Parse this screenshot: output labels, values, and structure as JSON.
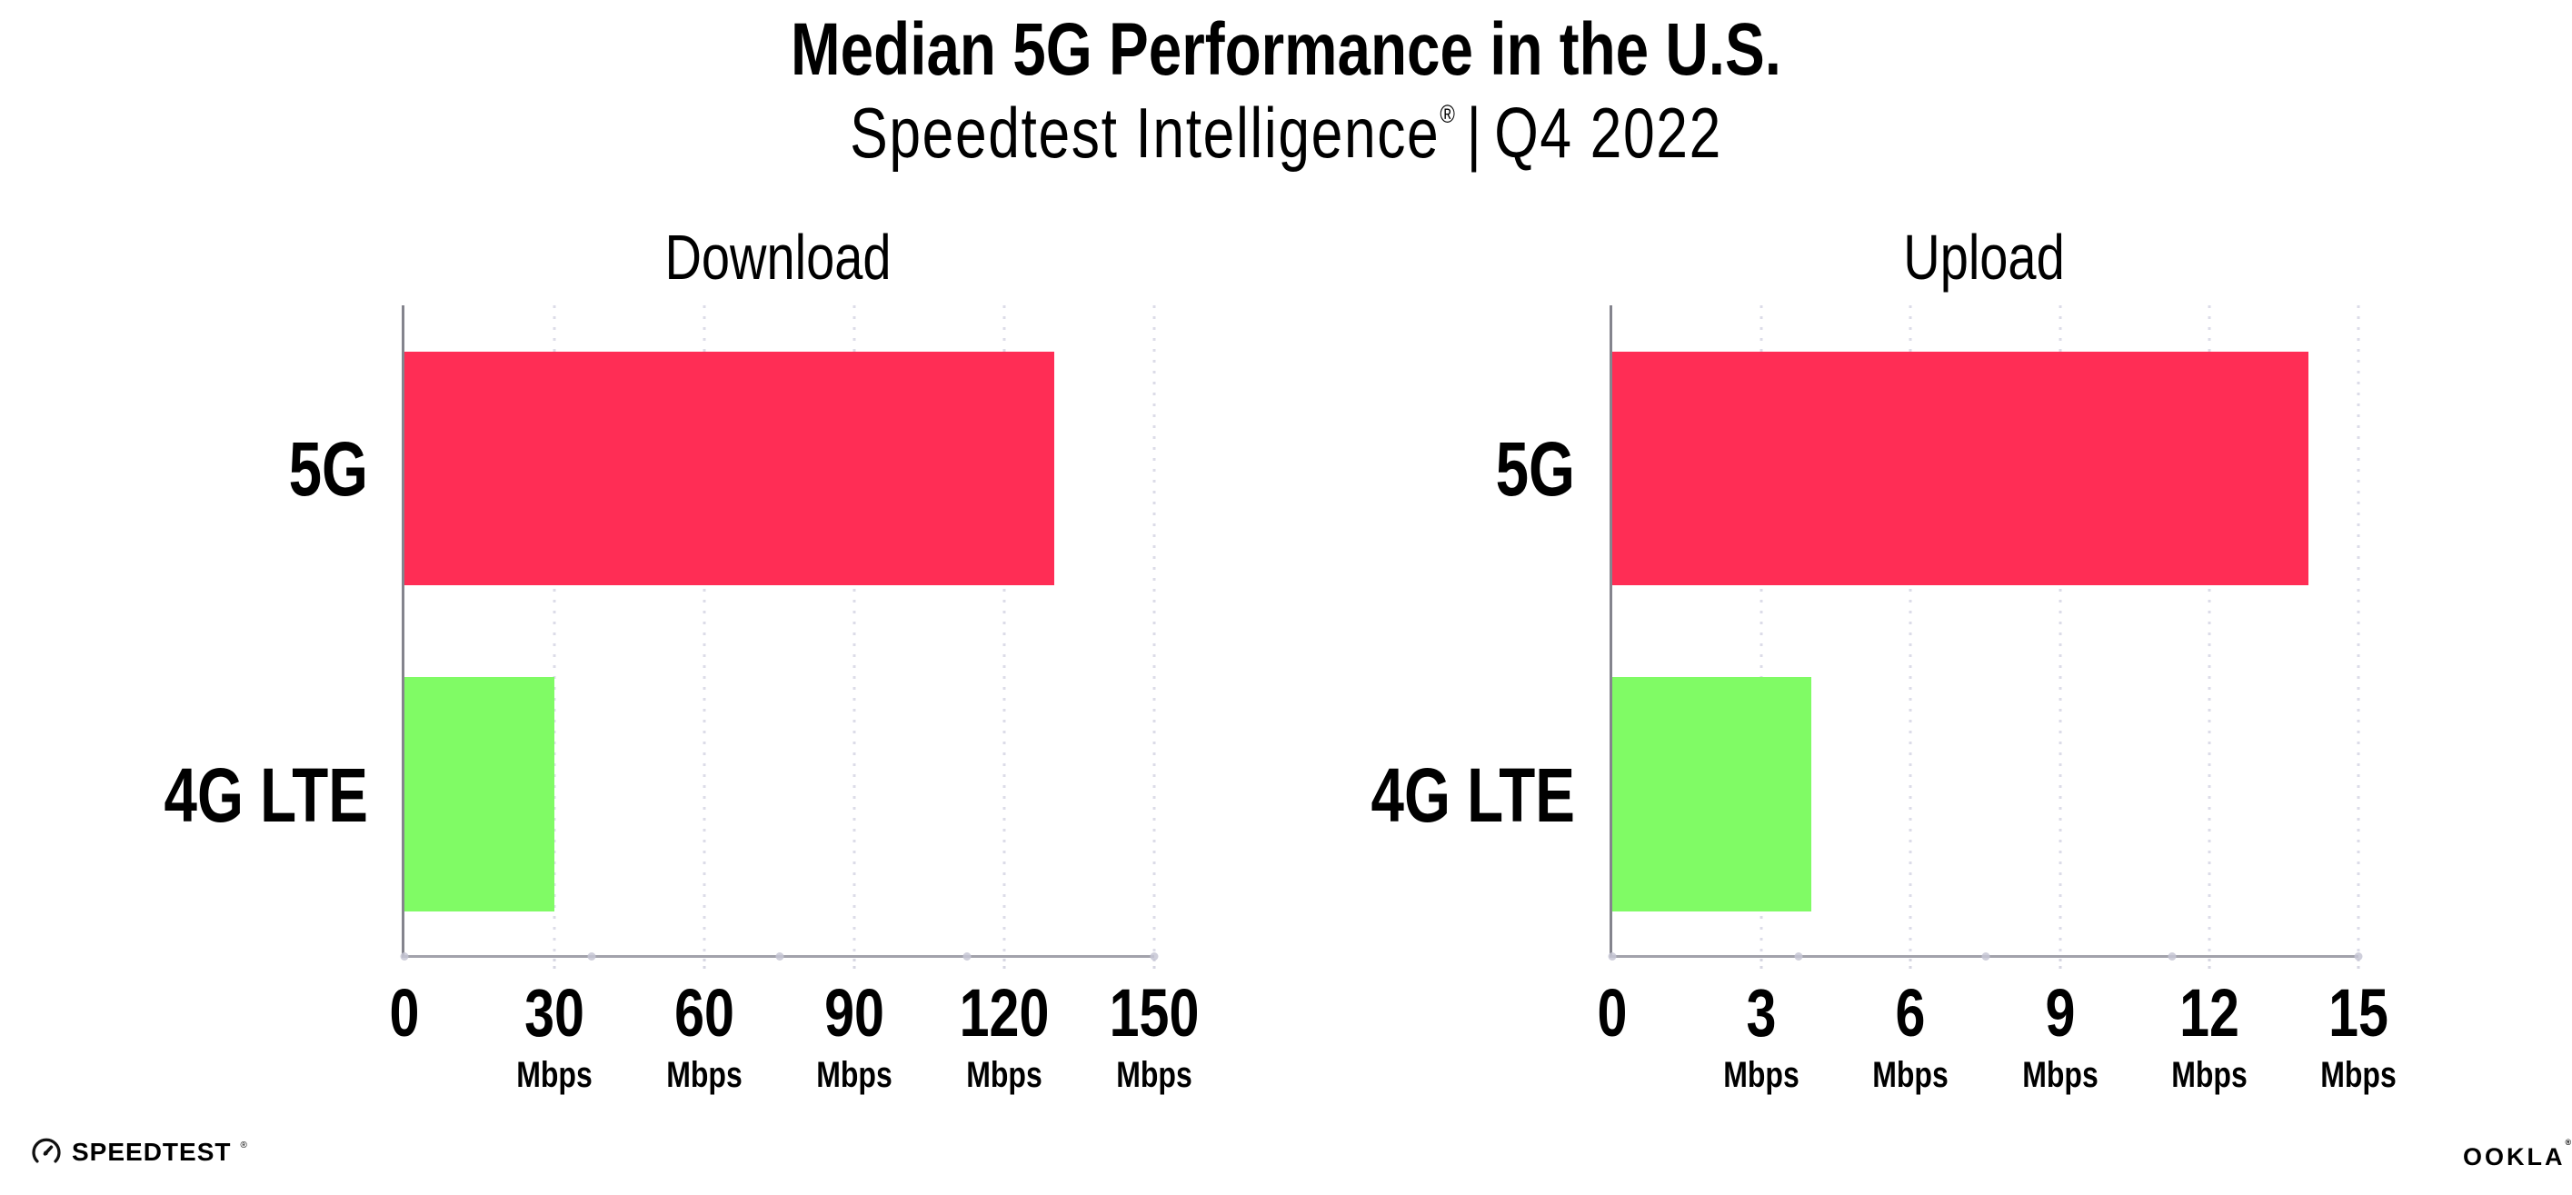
{
  "header": {
    "title": "Median 5G Performance in the U.S.",
    "subtitle_product": "Speedtest Intelligence",
    "subtitle_reg": "®",
    "subtitle_separator": "|",
    "subtitle_period": "Q4 2022"
  },
  "chart_data": [
    {
      "type": "bar",
      "orientation": "horizontal",
      "title": "Download",
      "categories": [
        "5G",
        "4G LTE"
      ],
      "values": [
        130,
        30
      ],
      "unit": "Mbps",
      "xlim": [
        0,
        150
      ],
      "xticks": [
        0,
        30,
        60,
        90,
        120,
        150
      ],
      "tick_labels": [
        {
          "num": "0",
          "unit": ""
        },
        {
          "num": "30",
          "unit": "Mbps"
        },
        {
          "num": "60",
          "unit": "Mbps"
        },
        {
          "num": "90",
          "unit": "Mbps"
        },
        {
          "num": "120",
          "unit": "Mbps"
        },
        {
          "num": "150",
          "unit": "Mbps"
        }
      ],
      "grid": "dotted-vertical",
      "legend": "none",
      "bar_colors": [
        "#ff2d55",
        "#80fb65"
      ]
    },
    {
      "type": "bar",
      "orientation": "horizontal",
      "title": "Upload",
      "categories": [
        "5G",
        "4G LTE"
      ],
      "values": [
        14,
        4
      ],
      "unit": "Mbps",
      "xlim": [
        0,
        15
      ],
      "xticks": [
        0,
        3,
        6,
        9,
        12,
        15
      ],
      "tick_labels": [
        {
          "num": "0",
          "unit": ""
        },
        {
          "num": "3",
          "unit": "Mbps"
        },
        {
          "num": "6",
          "unit": "Mbps"
        },
        {
          "num": "9",
          "unit": "Mbps"
        },
        {
          "num": "12",
          "unit": "Mbps"
        },
        {
          "num": "15",
          "unit": "Mbps"
        }
      ],
      "grid": "dotted-vertical",
      "legend": "none",
      "bar_colors": [
        "#ff2d55",
        "#80fb65"
      ]
    }
  ],
  "colors": {
    "bar_5g": "#ff2d55",
    "bar_4g_lte": "#80fb65",
    "grid_dot": "#dcdce8",
    "axis_line": "#a2a2ab",
    "text": "#000000",
    "background": "#ffffff"
  },
  "footer": {
    "speedtest_label": "SPEEDTEST",
    "speedtest_mark": "®",
    "ookla_label": "OOKLA",
    "ookla_mark": "®"
  }
}
